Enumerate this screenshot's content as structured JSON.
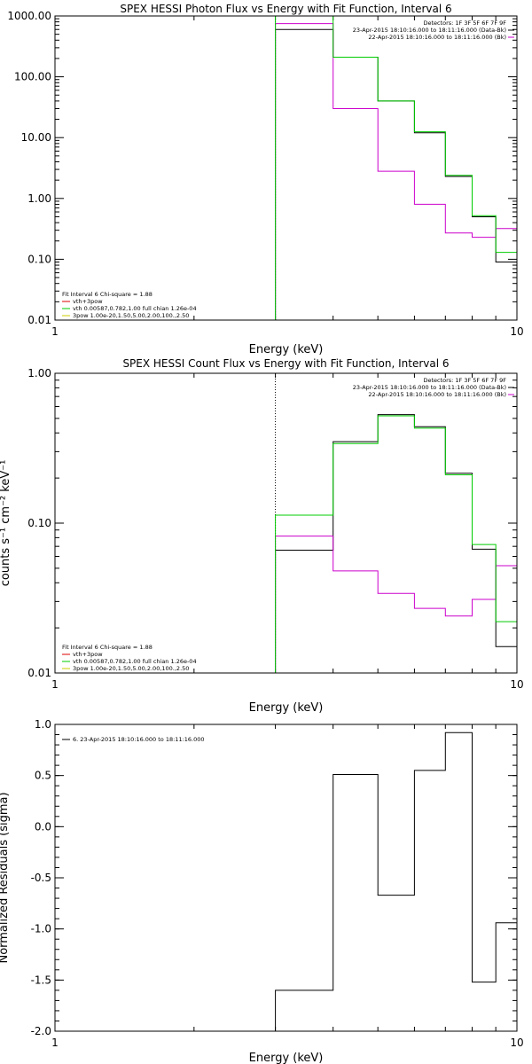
{
  "colors": {
    "black": "#000000",
    "magenta": "#cc00cc",
    "green": "#00cc00",
    "red": "#dd0000",
    "yellow": "#cccc00",
    "frame": "#000000"
  },
  "chart_data": [
    {
      "type": "line",
      "title": "SPEX HESSI Photon Flux vs Energy with Fit Function, Interval 6",
      "xlabel": "Energy (keV)",
      "ylabel": "",
      "xscale": "log",
      "yscale": "log",
      "xlim": [
        1,
        10
      ],
      "ylim": [
        0.01,
        1000
      ],
      "xticks": [
        "1",
        "10"
      ],
      "yticks": [
        "1000.00",
        "100.00",
        "10.00",
        "1.00",
        "0.10",
        "0.01"
      ],
      "ytick_values": [
        1000,
        100,
        10,
        1,
        0.1,
        0.01
      ],
      "bin_edges": [
        3,
        4,
        5,
        6,
        7,
        8,
        9,
        10
      ],
      "series": [
        {
          "key": "black",
          "values": [
            600,
            210,
            40,
            12,
            2.3,
            0.5,
            0.09
          ]
        },
        {
          "key": "magenta",
          "values": [
            750,
            30,
            2.8,
            0.8,
            0.27,
            0.23,
            0.32
          ]
        },
        {
          "key": "green",
          "values": [
            1050,
            210,
            40,
            12.5,
            2.4,
            0.52,
            0.13
          ]
        }
      ],
      "legend_right": [
        "Detectors: 1F 3F 5F 6F 7F 9F",
        "23-Apr-2015 18:10:16.000 to 18:11:16.000 (Data-Bk)",
        "22-Apr-2015 18:10:16.000 to 18:11:16.000 (Bk)"
      ],
      "legend_left": [
        "Fit Interval 6   Chi-square = 1.88",
        "vth+3pow",
        "vth 0.00587,0.782,1.00   full chian 1.26e-04",
        "3pow 1.00e-20,1.50,5.00,2.00,100.,2.50"
      ]
    },
    {
      "type": "line",
      "title": "SPEX HESSI Count Flux vs Energy with Fit Function, Interval 6",
      "xlabel": "Energy (keV)",
      "ylabel": "counts s⁻¹ cm⁻² keV⁻¹",
      "xscale": "log",
      "yscale": "log",
      "xlim": [
        1,
        10
      ],
      "ylim": [
        0.01,
        1.0
      ],
      "xticks": [
        "1",
        "10"
      ],
      "yticks": [
        "1.00",
        "0.10",
        "0.01"
      ],
      "ytick_values": [
        1.0,
        0.1,
        0.01
      ],
      "bin_edges": [
        3,
        4,
        5,
        6,
        7,
        8,
        9,
        10
      ],
      "series": [
        {
          "key": "black",
          "values": [
            0.066,
            0.35,
            0.53,
            0.44,
            0.215,
            0.067,
            0.015
          ]
        },
        {
          "key": "magenta",
          "values": [
            0.082,
            0.048,
            0.034,
            0.027,
            0.024,
            0.031,
            0.052
          ]
        },
        {
          "key": "green",
          "values": [
            0.113,
            0.34,
            0.52,
            0.43,
            0.21,
            0.072,
            0.022
          ]
        }
      ],
      "legend_right": [
        "Detectors: 1F 3F 5F 6F 7F 9F",
        "23-Apr-2015 18:10:16.000 to 18:11:16.000 (Data-Bk)",
        "22-Apr-2015 18:10:16.000 to 18:11:16.000 (Bk)"
      ],
      "legend_left": [
        "Fit Interval 6   Chi-square = 1.88",
        "vth+3pow",
        "vth 0.00587,0.782,1.00   full chian 1.26e-04",
        "3pow 1.00e-20,1.50,5.00,2.00,100.,2.50"
      ]
    },
    {
      "type": "line",
      "title": "",
      "xlabel": "Energy (keV)",
      "ylabel": "Normalized Residuals (sigma)",
      "xscale": "log",
      "yscale": "linear",
      "xlim": [
        1,
        10
      ],
      "ylim": [
        -2.0,
        1.0
      ],
      "xticks": [
        "1",
        "10"
      ],
      "yticks": [
        "1.0",
        "0.5",
        "0.0",
        "-0.5",
        "-1.0",
        "-1.5",
        "-2.0"
      ],
      "ytick_values": [
        1.0,
        0.5,
        0.0,
        -0.5,
        -1.0,
        -1.5,
        -2.0
      ],
      "bin_edges": [
        3,
        4,
        5,
        6,
        7,
        8,
        9,
        10
      ],
      "series": [
        {
          "key": "black",
          "values": [
            -1.6,
            0.51,
            -0.67,
            0.55,
            0.92,
            -1.52,
            -0.94
          ]
        }
      ],
      "legend_right": [],
      "legend_left": [
        "6. 23-Apr-2015 18:10:16.000 to 18:11:16.000"
      ]
    }
  ]
}
